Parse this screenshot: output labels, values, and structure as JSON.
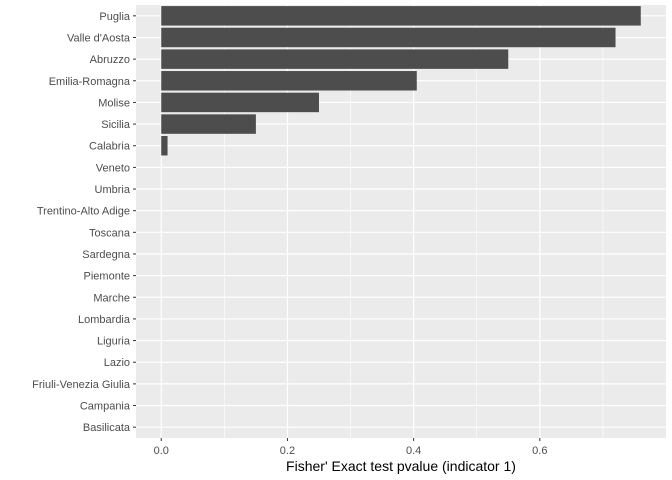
{
  "chart_data": {
    "type": "bar",
    "orientation": "horizontal",
    "title": "",
    "xlabel": "Fisher' Exact test pvalue (indicator 1)",
    "ylabel": "",
    "xlim": [
      -0.04,
      0.8
    ],
    "xticks": [
      0.0,
      0.2,
      0.4,
      0.6
    ],
    "xtick_labels": [
      "0.0",
      "0.2",
      "0.4",
      "0.6"
    ],
    "grid": true,
    "colors": {
      "panel": "#ebebeb",
      "grid": "#ffffff",
      "bar": "#4d4d4d",
      "text": "#4d4d4d"
    },
    "categories": [
      "Puglia",
      "Valle d'Aosta",
      "Abruzzo",
      "Emilia-Romagna",
      "Molise",
      "Sicilia",
      "Calabria",
      "Veneto",
      "Umbria",
      "Trentino-Alto Adige",
      "Toscana",
      "Sardegna",
      "Piemonte",
      "Marche",
      "Lombardia",
      "Liguria",
      "Lazio",
      "Friuli-Venezia Giulia",
      "Campania",
      "Basilicata"
    ],
    "values": [
      0.76,
      0.72,
      0.55,
      0.405,
      0.25,
      0.15,
      0.01,
      0,
      0,
      0,
      0,
      0,
      0,
      0,
      0,
      0,
      0,
      0,
      0,
      0
    ]
  }
}
